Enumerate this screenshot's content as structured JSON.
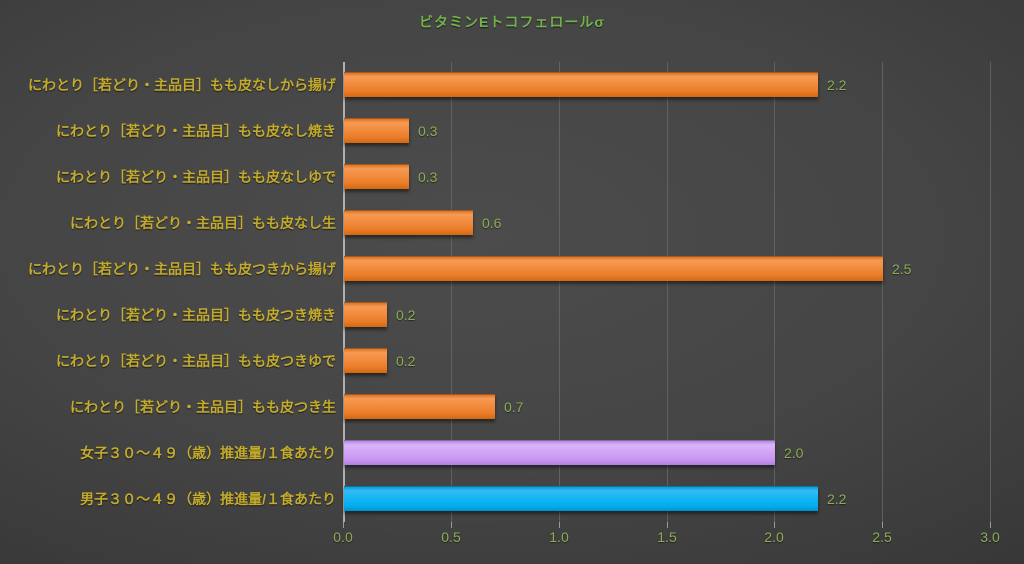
{
  "chart_data": {
    "type": "bar",
    "orientation": "horizontal",
    "title": "ビタミンEトコフェロールσ",
    "categories": [
      "にわとり［若どり・主品目］もも皮なしから揚げ",
      "にわとり［若どり・主品目］もも皮なし焼き",
      "にわとり［若どり・主品目］もも皮なしゆで",
      "にわとり［若どり・主品目］もも皮なし生",
      "にわとり［若どり・主品目］もも皮つきから揚げ",
      "にわとり［若どり・主品目］もも皮つき焼き",
      "にわとり［若どり・主品目］もも皮つきゆで",
      "にわとり［若どり・主品目］もも皮つき生",
      "女子３０～４９（歳）推進量/１食あたり",
      "男子３０～４９（歳）推進量/１食あたり"
    ],
    "values": [
      2.2,
      0.3,
      0.3,
      0.6,
      2.5,
      0.2,
      0.2,
      0.7,
      2.0,
      2.2
    ],
    "value_labels": [
      "2.2",
      "0.3",
      "0.3",
      "0.6",
      "2.5",
      "0.2",
      "0.2",
      "0.7",
      "2.0",
      "2.2"
    ],
    "bar_color_keys": [
      "orange",
      "orange",
      "orange",
      "orange",
      "orange",
      "orange",
      "orange",
      "orange",
      "purple",
      "blue"
    ],
    "xlim": [
      0,
      3.0
    ],
    "x_ticks": [
      "0.0",
      "0.5",
      "1.0",
      "1.5",
      "2.0",
      "2.5",
      "3.0"
    ],
    "grid": true,
    "legend": "none",
    "colors": {
      "orange_bar": "#ED7D31",
      "purple_bar": "#CC99FF",
      "blue_bar": "#00B0F0",
      "title_text": "#74B24A",
      "value_text": "#8CAD53",
      "axis_tick_text": "#8CAD53",
      "category_text": "#C3AB2D",
      "gridline": "#6B6B6B",
      "axis_line": "#C2C2C2",
      "background_center": "#4C4C4C",
      "background_edge": "#262626"
    }
  }
}
